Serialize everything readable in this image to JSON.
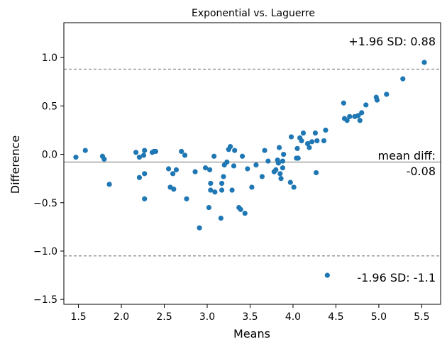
{
  "chart_data": {
    "type": "scatter",
    "title": "Exponential vs. Laguerre",
    "xlabel": "Means",
    "ylabel": "Difference",
    "xlim": [
      1.33,
      5.72
    ],
    "ylim": [
      -1.55,
      1.36
    ],
    "xticks": [
      1.5,
      2.0,
      2.5,
      3.0,
      3.5,
      4.0,
      4.5,
      5.0,
      5.5
    ],
    "yticks": [
      -1.5,
      -1.0,
      -0.5,
      0.0,
      0.5,
      1.0
    ],
    "xtick_labels": [
      "1.5",
      "2.0",
      "2.5",
      "3.0",
      "3.5",
      "4.0",
      "4.5",
      "5.0",
      "5.5"
    ],
    "ytick_labels": [
      "−1.5",
      "−1.0",
      "−0.5",
      "0.0",
      "0.5",
      "1.0"
    ],
    "point_color": "#1f77b4",
    "mean_diff": -0.08,
    "upper_loa": 0.88,
    "lower_loa": -1.05,
    "annotations": {
      "upper": "+1.96 SD: 0.88",
      "mean_line1": "mean diff:",
      "mean_line2": "-0.08",
      "lower": "-1.96 SD: -1.1"
    },
    "points": [
      [
        1.47,
        -0.03
      ],
      [
        1.58,
        0.04
      ],
      [
        1.78,
        -0.02
      ],
      [
        1.8,
        -0.05
      ],
      [
        1.86,
        -0.31
      ],
      [
        2.17,
        0.02
      ],
      [
        2.21,
        -0.03
      ],
      [
        2.21,
        -0.24
      ],
      [
        2.26,
        -0.01
      ],
      [
        2.27,
        0.04
      ],
      [
        2.27,
        -0.2
      ],
      [
        2.27,
        -0.46
      ],
      [
        2.36,
        0.02
      ],
      [
        2.38,
        0.03
      ],
      [
        2.4,
        0.03
      ],
      [
        2.55,
        -0.15
      ],
      [
        2.57,
        -0.34
      ],
      [
        2.6,
        -0.2
      ],
      [
        2.61,
        -0.36
      ],
      [
        2.64,
        -0.16
      ],
      [
        2.7,
        0.03
      ],
      [
        2.74,
        -0.01
      ],
      [
        2.76,
        -0.46
      ],
      [
        2.86,
        -0.18
      ],
      [
        2.91,
        -0.76
      ],
      [
        2.98,
        -0.14
      ],
      [
        3.03,
        -0.16
      ],
      [
        3.04,
        -0.3
      ],
      [
        3.04,
        -0.37
      ],
      [
        3.02,
        -0.55
      ],
      [
        3.08,
        -0.02
      ],
      [
        3.09,
        -0.39
      ],
      [
        3.16,
        -0.66
      ],
      [
        3.17,
        -0.37
      ],
      [
        3.17,
        -0.3
      ],
      [
        3.19,
        -0.23
      ],
      [
        3.2,
        -0.11
      ],
      [
        3.23,
        -0.08
      ],
      [
        3.25,
        0.05
      ],
      [
        3.27,
        0.08
      ],
      [
        3.29,
        -0.37
      ],
      [
        3.31,
        -0.12
      ],
      [
        3.32,
        0.04
      ],
      [
        3.37,
        -0.55
      ],
      [
        3.39,
        -0.57
      ],
      [
        3.41,
        -0.02
      ],
      [
        3.44,
        -0.61
      ],
      [
        3.47,
        -0.15
      ],
      [
        3.52,
        -0.34
      ],
      [
        3.57,
        -0.11
      ],
      [
        3.64,
        -0.23
      ],
      [
        3.67,
        0.04
      ],
      [
        3.71,
        -0.07
      ],
      [
        3.78,
        -0.18
      ],
      [
        3.8,
        -0.16
      ],
      [
        3.82,
        -0.06
      ],
      [
        3.83,
        -0.09
      ],
      [
        3.84,
        0.07
      ],
      [
        3.85,
        -0.2
      ],
      [
        3.86,
        -0.25
      ],
      [
        3.88,
        -0.14
      ],
      [
        3.88,
        -0.07
      ],
      [
        3.89,
        0.0
      ],
      [
        3.97,
        -0.29
      ],
      [
        3.98,
        0.18
      ],
      [
        4.01,
        -0.34
      ],
      [
        4.04,
        -0.04
      ],
      [
        4.05,
        0.06
      ],
      [
        4.06,
        -0.04
      ],
      [
        4.08,
        0.17
      ],
      [
        4.1,
        0.14
      ],
      [
        4.12,
        0.22
      ],
      [
        4.17,
        0.11
      ],
      [
        4.19,
        0.07
      ],
      [
        4.22,
        0.13
      ],
      [
        4.26,
        0.22
      ],
      [
        4.27,
        -0.19
      ],
      [
        4.28,
        0.14
      ],
      [
        4.36,
        0.14
      ],
      [
        4.38,
        0.25
      ],
      [
        4.59,
        0.53
      ],
      [
        4.6,
        0.37
      ],
      [
        4.63,
        0.35
      ],
      [
        4.66,
        0.39
      ],
      [
        4.72,
        0.39
      ],
      [
        4.76,
        0.4
      ],
      [
        4.78,
        0.35
      ],
      [
        4.8,
        0.43
      ],
      [
        4.85,
        0.51
      ],
      [
        4.97,
        0.59
      ],
      [
        4.98,
        0.56
      ],
      [
        5.09,
        0.62
      ],
      [
        5.28,
        0.78
      ],
      [
        5.53,
        0.95
      ],
      [
        4.4,
        -1.25
      ]
    ]
  }
}
